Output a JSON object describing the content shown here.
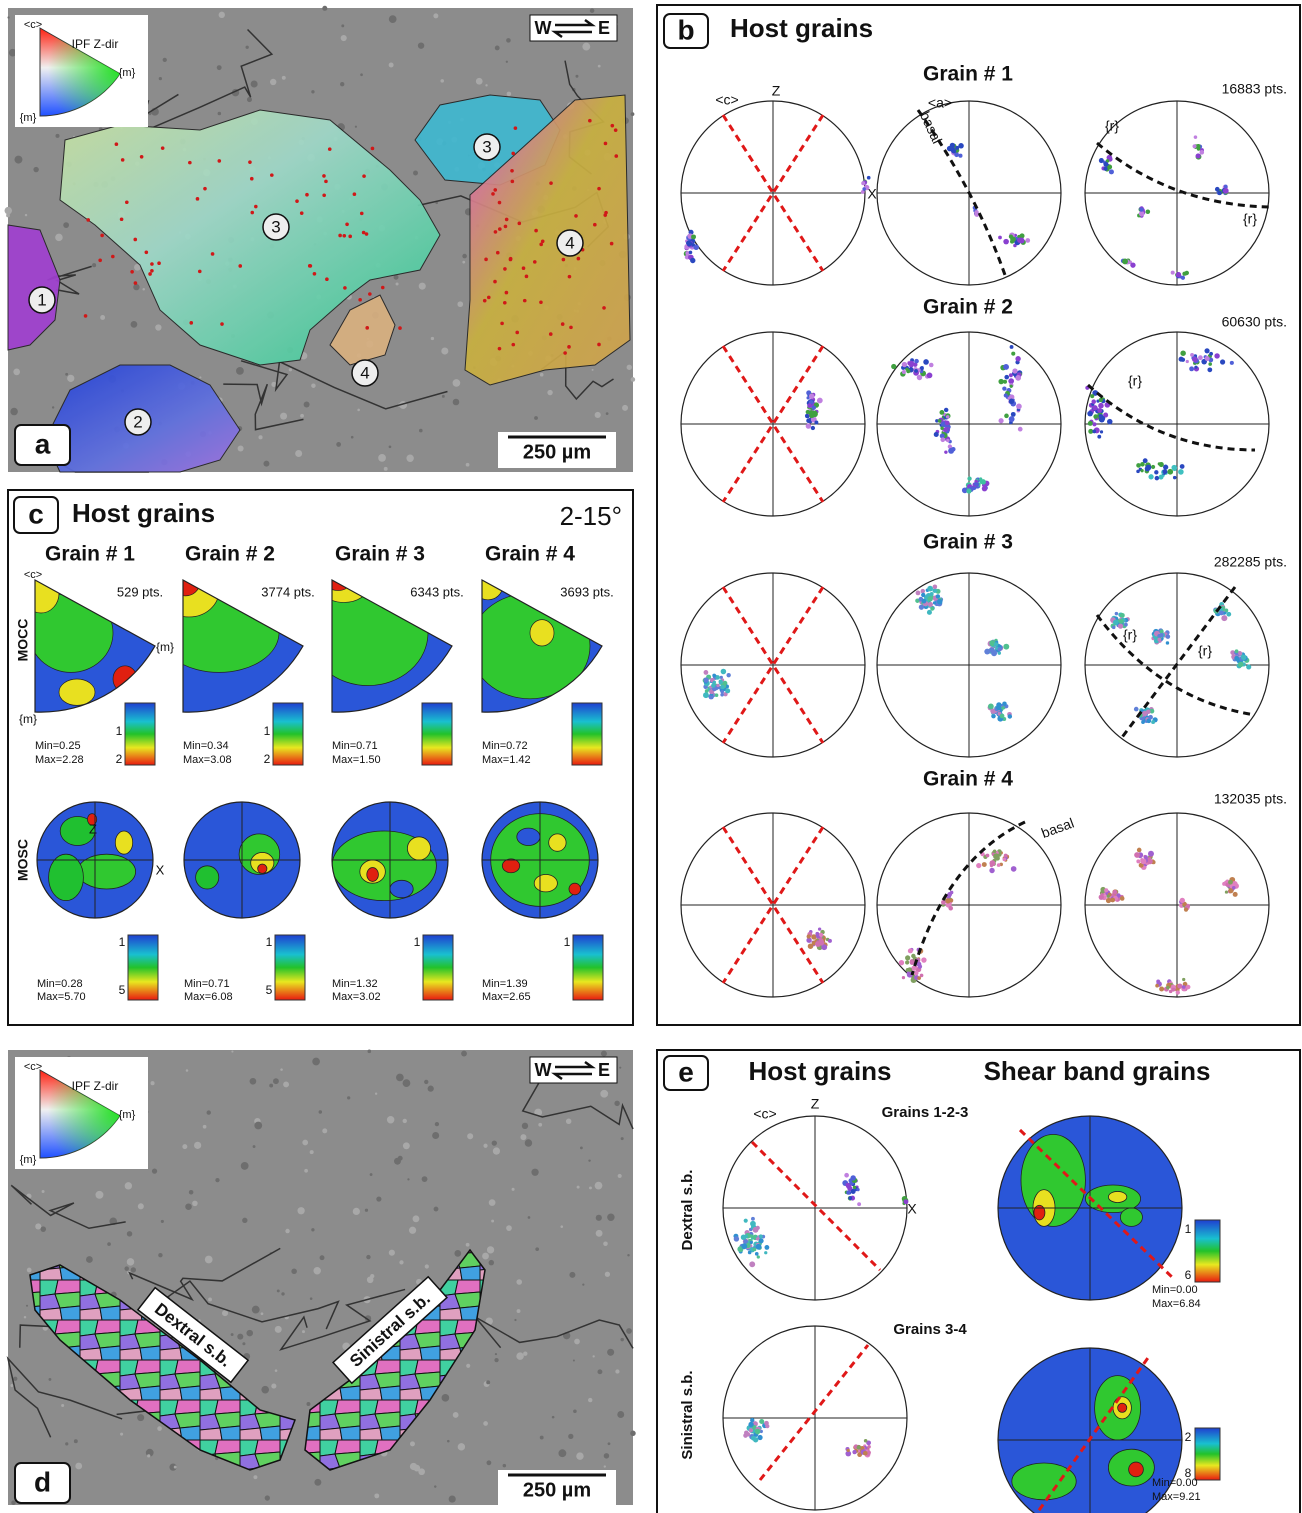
{
  "panel_a": {
    "label": "a",
    "scale_bar": "250 µm",
    "shear_sense": {
      "west": "W",
      "east": "E"
    },
    "ipf_key": {
      "c_axis": "<c>",
      "title": "IPF Z-dir",
      "m_right": "{m}",
      "m_bottom": "{m}"
    },
    "grain_labels": [
      "1",
      "2",
      "3",
      "3",
      "4",
      "4"
    ]
  },
  "panel_b": {
    "label": "b",
    "title": "Host grains",
    "axis_labels": {
      "c_axis": "<c>",
      "z": "Z",
      "x": "X",
      "a_axis": "<a>"
    },
    "grains": [
      {
        "title": "Grain # 1",
        "points": "16883 pts.",
        "annotations": [
          "basal",
          "{r}",
          "{r}"
        ]
      },
      {
        "title": "Grain # 2",
        "points": "60630 pts.",
        "annotations": [
          "{r}"
        ]
      },
      {
        "title": "Grain # 3",
        "points": "282285 pts.",
        "annotations": [
          "{r}",
          "{r}"
        ]
      },
      {
        "title": "Grain # 4",
        "points": "132035 pts.",
        "annotations": [
          "basal"
        ]
      }
    ]
  },
  "panel_c": {
    "label": "c",
    "title": "Host grains",
    "range": "2-15°",
    "row_labels": [
      "MOCC",
      "MOSC"
    ],
    "ipf_labels": {
      "c_axis": "<c>",
      "m_right": "{m}",
      "m_bottom": "{m}"
    },
    "pf_labels": {
      "z": "Z",
      "x": "X"
    },
    "grains": [
      {
        "title": "Grain # 1",
        "points": "529 pts.",
        "mocc": {
          "min": "Min=0.25",
          "max": "Max=2.28",
          "scale": [
            "1",
            "2"
          ]
        },
        "mosc": {
          "min": "Min=0.28",
          "max": "Max=5.70",
          "scale": [
            "1",
            "5"
          ]
        }
      },
      {
        "title": "Grain # 2",
        "points": "3774 pts.",
        "mocc": {
          "min": "Min=0.34",
          "max": "Max=3.08",
          "scale": [
            "1",
            "2"
          ]
        },
        "mosc": {
          "min": "Min=0.71",
          "max": "Max=6.08",
          "scale": [
            "1",
            "5"
          ]
        }
      },
      {
        "title": "Grain # 3",
        "points": "6343 pts.",
        "mocc": {
          "min": "Min=0.71",
          "max": "Max=1.50"
        },
        "mosc": {
          "min": "Min=1.32",
          "max": "Max=3.02",
          "scale": [
            "1"
          ]
        }
      },
      {
        "title": "Grain # 4",
        "points": "3693 pts.",
        "mocc": {
          "min": "Min=0.72",
          "max": "Max=1.42"
        },
        "mosc": {
          "min": "Min=1.39",
          "max": "Max=2.65",
          "scale": [
            "1"
          ]
        }
      }
    ]
  },
  "panel_d": {
    "label": "d",
    "scale_bar": "250 µm",
    "shear_sense": {
      "west": "W",
      "east": "E"
    },
    "ipf_key": {
      "c_axis": "<c>",
      "title": "IPF Z-dir",
      "m_right": "{m}",
      "m_bottom": "{m}"
    },
    "band_labels": [
      "Dextral s.b.",
      "Sinistral s.b."
    ]
  },
  "panel_e": {
    "label": "e",
    "column_titles": [
      "Host grains",
      "Shear band grains"
    ],
    "row_labels": [
      "Dextral s.b.",
      "Sinistral s.b."
    ],
    "axis_labels": {
      "c_axis": "<c>",
      "z": "Z",
      "x": "X"
    },
    "rows": [
      {
        "grains": "Grains 1-2-3",
        "min": "Min=0.00",
        "max": "Max=6.84",
        "scale": [
          "1",
          "6"
        ]
      },
      {
        "grains": "Grains 3-4",
        "min": "Min=0.00",
        "max": "Max=9.21",
        "scale": [
          "2",
          "8"
        ]
      }
    ]
  }
}
